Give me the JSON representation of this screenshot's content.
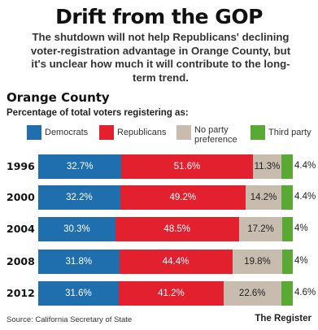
{
  "chart_data": {
    "type": "bar",
    "orientation": "horizontal",
    "stacked": true,
    "title": "Drift from the GOP",
    "subtitle": "The shutdown will not help Republicans' declining voter-registration advantage in Orange County, but it's unclear how much it will contribute to the long-term trend.",
    "region_label": "Orange County",
    "measure_label": "Percentage of total voters registering as:",
    "categories": [
      "1996",
      "2000",
      "2004",
      "2008",
      "2012"
    ],
    "series": [
      {
        "name": "Democrats",
        "color": "#1f6fae",
        "values": [
          32.7,
          32.2,
          30.3,
          31.8,
          31.6
        ],
        "labels": [
          "32.7%",
          "32.2%",
          "30.3%",
          "31.8%",
          "31.6%"
        ]
      },
      {
        "name": "Republicans",
        "color": "#e3202e",
        "values": [
          51.6,
          49.2,
          48.5,
          44.4,
          41.2
        ],
        "labels": [
          "51.6%",
          "49.2%",
          "48.5%",
          "44.4%",
          "41.2%"
        ]
      },
      {
        "name": "No party preference",
        "color": "#c8bcaf",
        "values": [
          11.3,
          14.2,
          17.2,
          19.8,
          22.6
        ],
        "labels": [
          "11.3%",
          "14.2%",
          "17.2%",
          "19.8%",
          "22.6%"
        ]
      },
      {
        "name": "Third party",
        "color": "#59a934",
        "values": [
          4.4,
          4.4,
          4.0,
          4.0,
          4.6
        ],
        "labels": [
          "4.4%",
          "4.4%",
          "4%",
          "4%",
          "4.6%"
        ]
      }
    ],
    "legend": {
      "placement": "top",
      "items": [
        {
          "lines": [
            "Democrats"
          ]
        },
        {
          "lines": [
            "Republicans"
          ]
        },
        {
          "lines": [
            "No party",
            "preference"
          ]
        },
        {
          "lines": [
            "Third party"
          ]
        }
      ]
    },
    "source": "Source: California Secretary of State",
    "credit": "The Register"
  }
}
